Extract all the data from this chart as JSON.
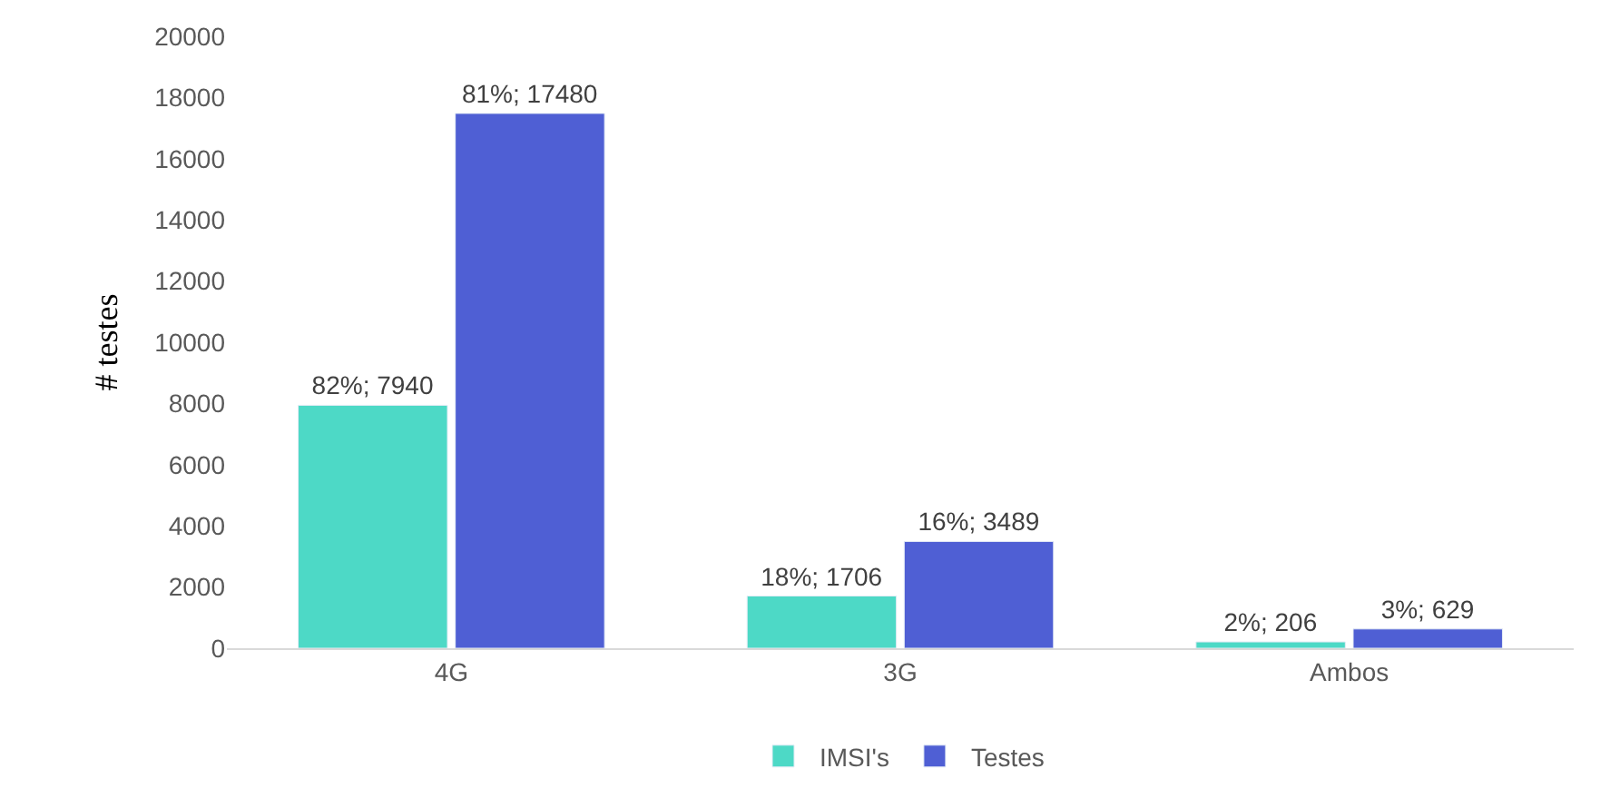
{
  "chart_data": {
    "type": "bar",
    "ylabel": "# testes",
    "categories": [
      "4G",
      "3G",
      "Ambos"
    ],
    "series": [
      {
        "name": "IMSI's",
        "color": "#4dd9c6",
        "values": [
          7940,
          1706,
          206
        ],
        "value_labels": [
          "82%; 7940",
          "18%; 1706",
          "2%; 206"
        ]
      },
      {
        "name": "Testes",
        "color": "#4f5fd4",
        "values": [
          17480,
          3489,
          629
        ],
        "value_labels": [
          "81%; 17480",
          "16%; 3489",
          "3%; 629"
        ]
      }
    ],
    "ylim": [
      0,
      20000
    ],
    "yticks": [
      0,
      2000,
      4000,
      6000,
      8000,
      10000,
      12000,
      14000,
      16000,
      18000,
      20000
    ],
    "legend": "bottom"
  }
}
